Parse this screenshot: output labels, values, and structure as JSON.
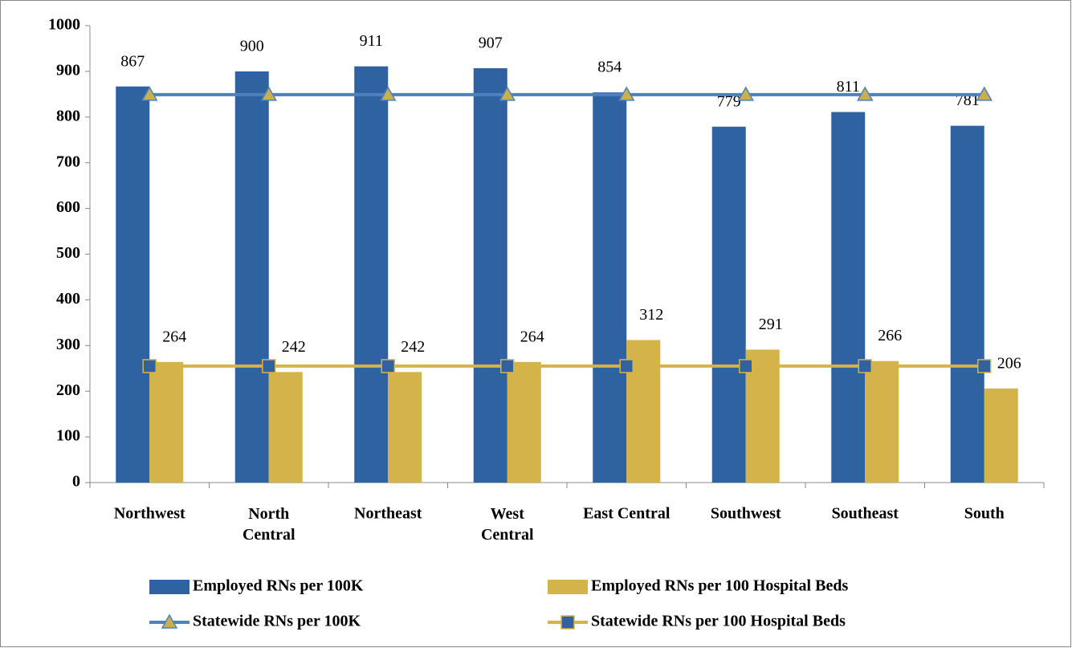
{
  "chart_data": {
    "type": "bar",
    "categories": [
      "Northwest",
      "North Central",
      "Northeast",
      "West Central",
      "East Central",
      "Southwest",
      "Southeast",
      "South"
    ],
    "series": [
      {
        "name": "Employed RNs per 100K",
        "color": "#2E62A0",
        "values": [
          867,
          900,
          911,
          907,
          854,
          779,
          811,
          781
        ]
      },
      {
        "name": "Employed RNs per 100 Hospital Beds",
        "color": "#D4B44A",
        "values": [
          264,
          242,
          242,
          264,
          312,
          291,
          266,
          206
        ]
      },
      {
        "name": "Statewide RNs per 100K",
        "type": "line",
        "marker": "triangle",
        "color": "#4F81BD",
        "marker_color": "#C9B04F",
        "values": [
          849,
          849,
          849,
          849,
          849,
          849,
          849,
          849
        ]
      },
      {
        "name": "Statewide RNs per 100 Hospital Beds",
        "type": "line",
        "marker": "square",
        "color": "#D4B44A",
        "marker_color": "#2E62A0",
        "values": [
          255,
          255,
          255,
          255,
          255,
          255,
          255,
          255
        ]
      }
    ],
    "ylim": [
      0,
      1000
    ],
    "yticks": [
      0,
      100,
      200,
      300,
      400,
      500,
      600,
      700,
      800,
      900,
      1000
    ],
    "grid": false,
    "legend": "bottom"
  }
}
